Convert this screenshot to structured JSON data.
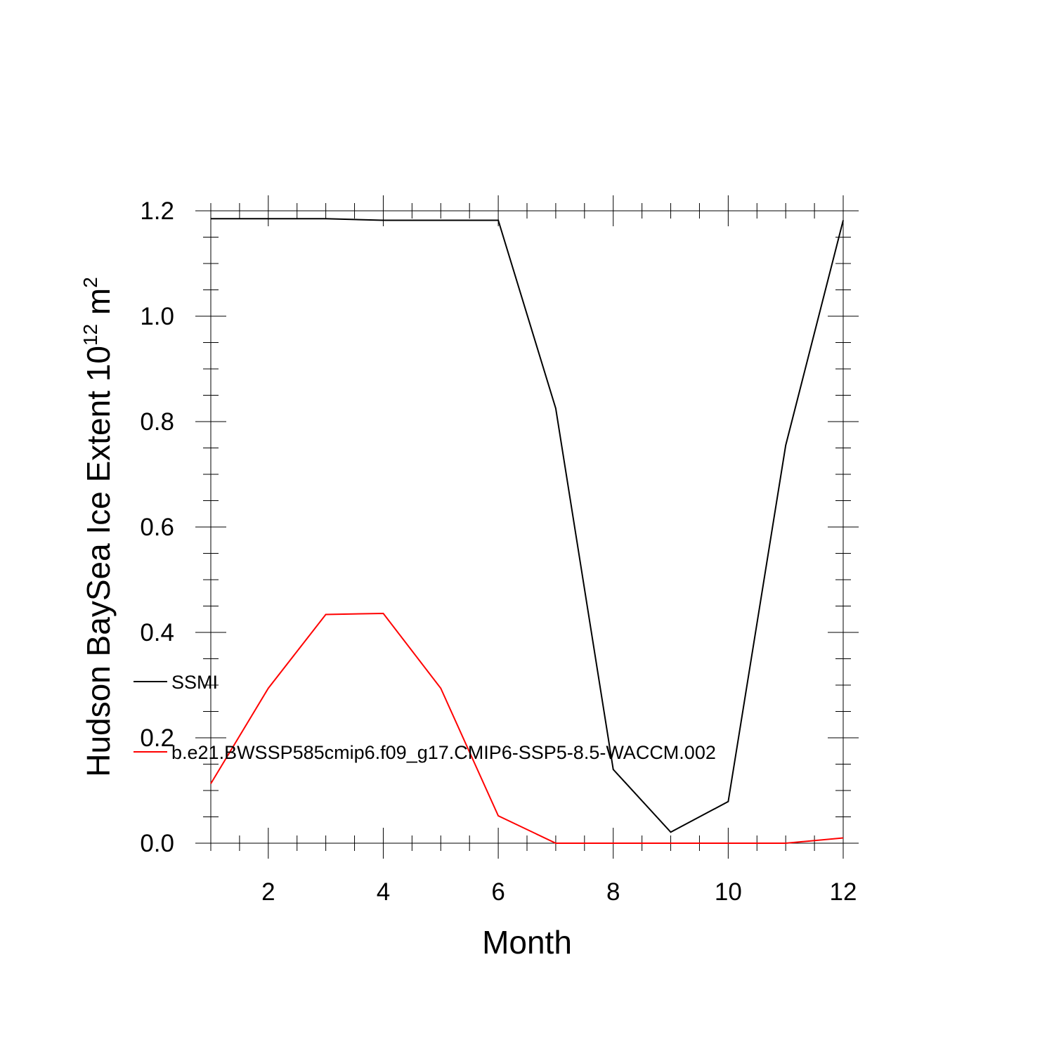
{
  "chart_data": {
    "type": "line",
    "title": "",
    "xlabel": "Month",
    "ylabel": {
      "main": "Hudson BaySea Ice Extent 10",
      "sup1": "12",
      "mid": " m",
      "sup2": "2"
    },
    "xlim": [
      1,
      12
    ],
    "ylim": [
      0,
      1.2
    ],
    "x_ticks": [
      2,
      4,
      6,
      8,
      10,
      12
    ],
    "x_tick_labels": [
      "2",
      "4",
      "6",
      "8",
      "10",
      "12"
    ],
    "y_ticks": [
      0,
      0.2,
      0.4,
      0.6,
      0.8,
      1.0,
      1.2
    ],
    "y_tick_labels": [
      "0.0",
      "0.2",
      "0.4",
      "0.6",
      "0.8",
      "1.0",
      "1.2"
    ],
    "x": [
      1,
      2,
      3,
      4,
      5,
      6,
      7,
      8,
      9,
      10,
      11,
      12
    ],
    "series": [
      {
        "name": "SSMI",
        "color": "#000000",
        "values": [
          1.185,
          1.185,
          1.185,
          1.182,
          1.182,
          1.182,
          0.825,
          0.14,
          0.021,
          0.079,
          0.755,
          1.182
        ]
      },
      {
        "name": "b.e21.BWSSP585cmip6.f09_g17.CMIP6-SSP5-8.5-WACCM.002",
        "color": "#ff0000",
        "values": [
          0.113,
          0.294,
          0.434,
          0.436,
          0.294,
          0.052,
          0.0,
          0.0,
          0.0,
          0.0,
          0.0,
          0.01
        ]
      }
    ],
    "legend_position": "left, overlapping plot",
    "grid": false
  }
}
